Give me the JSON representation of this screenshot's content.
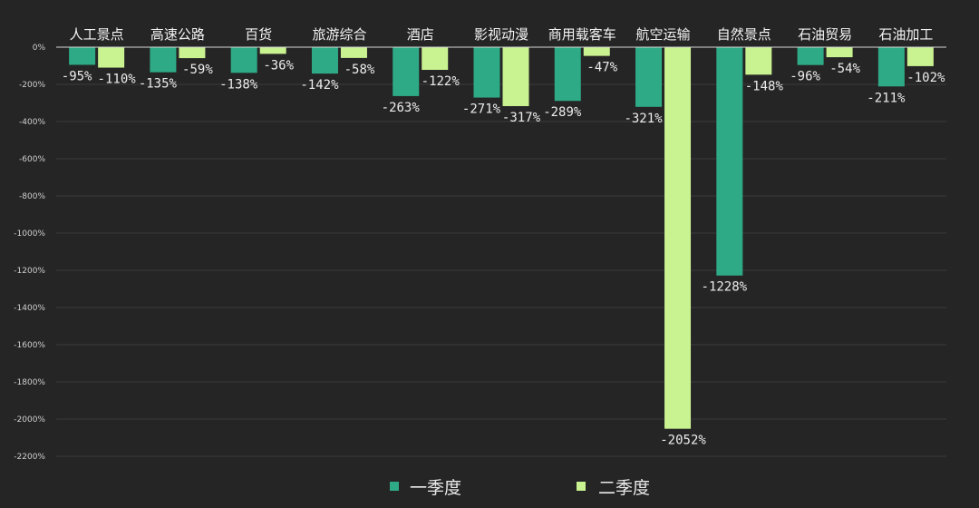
{
  "chart_data": {
    "type": "bar",
    "categories": [
      "人工景点",
      "高速公路",
      "百货",
      "旅游综合",
      "酒店",
      "影视动漫",
      "商用载客车",
      "航空运输",
      "自然景点",
      "石油贸易",
      "石油加工"
    ],
    "series": [
      {
        "name": "一季度",
        "color": "#2eab86",
        "values": [
          -95,
          -135,
          -138,
          -142,
          -263,
          -271,
          -289,
          -321,
          -1228,
          -96,
          -211
        ]
      },
      {
        "name": "二季度",
        "color": "#c9f291",
        "values": [
          -110,
          -59,
          -36,
          -58,
          -122,
          -317,
          -47,
          -2052,
          -148,
          -54,
          -102
        ]
      }
    ],
    "value_suffix": "%",
    "ylim": [
      -2200,
      0
    ],
    "yticks": [
      0,
      -200,
      -400,
      -600,
      -800,
      -1000,
      -1200,
      -1400,
      -1600,
      -1800,
      -2000,
      -2200
    ],
    "ytick_labels": [
      "0%",
      "-200%",
      "-400%",
      "-600%",
      "-800%",
      "-1000%",
      "-1200%",
      "-1400%",
      "-1600%",
      "-1800%",
      "-2000%",
      "-2200%"
    ],
    "grid": true,
    "legend_position": "bottom-center",
    "category_axis_position": "top"
  }
}
